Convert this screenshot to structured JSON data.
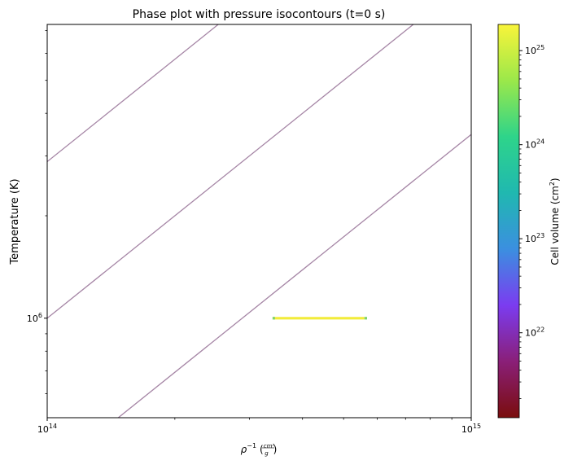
{
  "chart_data": {
    "type": "heatmap",
    "title": "Phase plot with pressure isocontours (t=0 s)",
    "xlabel": {
      "base": "ρ",
      "exponent": "−1",
      "unit_open": "(",
      "unit_num": "cm³",
      "unit_den": "g",
      "unit_close": ")"
    },
    "ylabel": "Temperature (K)",
    "x_scale": "log",
    "y_scale": "log",
    "xlim": [
      100000000000000.0,
      1000000000000000.0
    ],
    "ylim": [
      510000,
      7300000
    ],
    "x_ticks": [
      {
        "value": 100000000000000.0,
        "base": "10",
        "exp": "14"
      },
      {
        "value": 1000000000000000.0,
        "base": "10",
        "exp": "15"
      }
    ],
    "y_ticks": [
      {
        "value": 1000000.0,
        "base": "10",
        "exp": "6"
      }
    ],
    "grid": false,
    "isocontour_color": "#a585a5",
    "isocontour_slope_loglog": 1,
    "isocontour_log_offsets": [
      -8.46,
      -8.0,
      -7.54,
      -7.08
    ],
    "data_segment": {
      "y": 1000000.0,
      "x_start": 340000000000000.0,
      "x_end": 560000000000000.0,
      "x_end_tip": 568000000000000.0,
      "color": "#f2ec3a",
      "tip_color": "#7fd36c"
    },
    "colorbar": {
      "label": "Cell volume (cm",
      "label_sup": "2",
      "label_close": ")",
      "scale": "log",
      "range": [
        1.25e+21,
        1.9e+25
      ],
      "ticks": [
        {
          "value": 1e+22,
          "base": "10",
          "exp": "22"
        },
        {
          "value": 1e+23,
          "base": "10",
          "exp": "23"
        },
        {
          "value": 1e+24,
          "base": "10",
          "exp": "24"
        },
        {
          "value": 1e+25,
          "base": "10",
          "exp": "25"
        }
      ],
      "colormap": [
        "#7a0d0d",
        "#8a1f78",
        "#7b3cf0",
        "#3b8fe0",
        "#20b8b0",
        "#2ed48a",
        "#9be84a",
        "#f9f43a"
      ]
    }
  }
}
